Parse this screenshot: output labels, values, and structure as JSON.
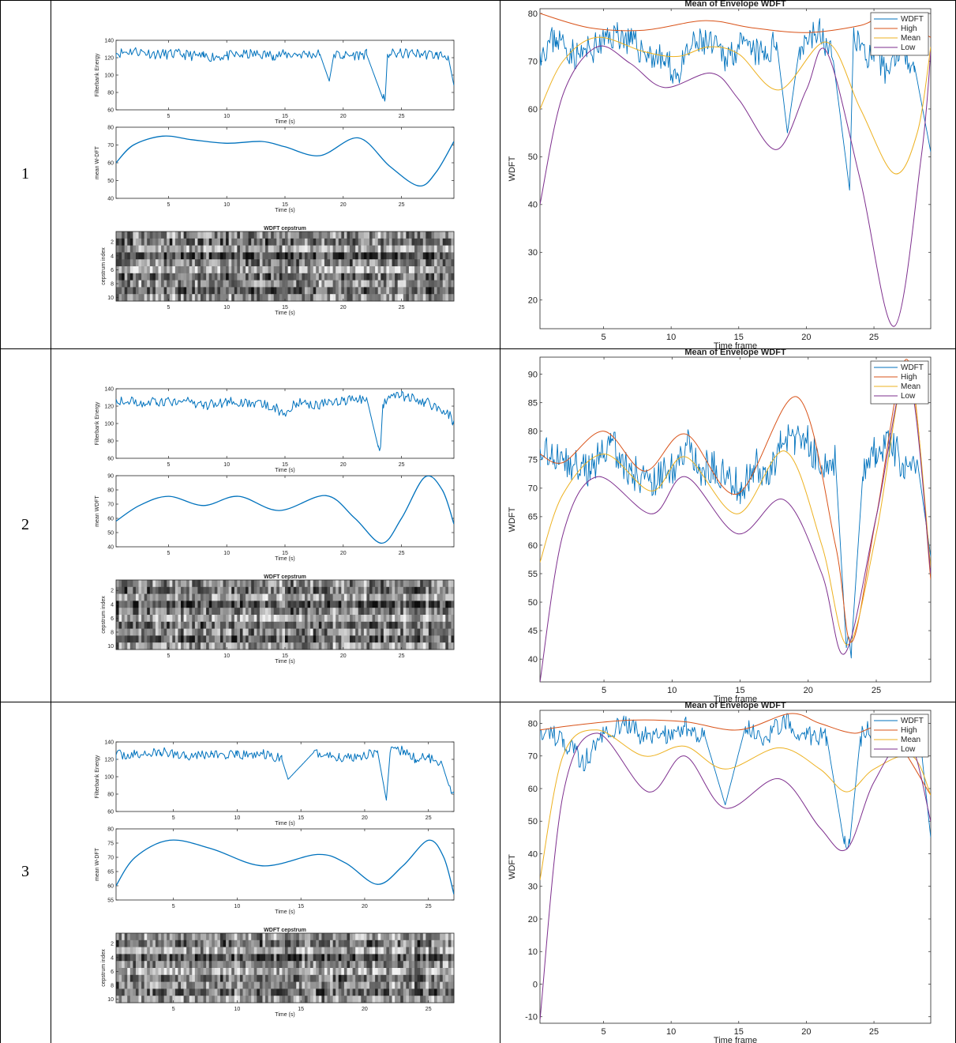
{
  "colors": {
    "wdft": "#0072BD",
    "high": "#D95319",
    "mean": "#EDB120",
    "low": "#7E2F8E",
    "axis": "#262626",
    "grid_line": "#000000"
  },
  "rows": [
    {
      "label": "1",
      "left": {
        "energy": {
          "ylabel": "Filterbank Energy",
          "xlabel": "Time (s)",
          "ylim": [
            60,
            140
          ],
          "yticks": [
            60,
            80,
            100,
            120,
            140
          ],
          "xticks": [
            5,
            10,
            15,
            20,
            25
          ],
          "xlim": [
            0.5,
            29.5
          ]
        },
        "mean": {
          "ylabel": "mean W-DFT",
          "xlabel": "Time (s)",
          "ylim": [
            40,
            80
          ],
          "yticks": [
            40,
            50,
            60,
            70,
            80
          ],
          "xticks": [
            5,
            10,
            15,
            20,
            25
          ],
          "xlim": [
            0.5,
            29.5
          ]
        },
        "cep": {
          "title": "WDFT cepstrum",
          "ylabel": "cepstrum index",
          "xlabel": "Time (s)",
          "yticks": [
            2,
            4,
            6,
            8,
            10
          ],
          "xticks": [
            5,
            10,
            15,
            20,
            25
          ],
          "xlim": [
            0.5,
            29.5
          ]
        }
      },
      "right": {
        "title": "Mean of Envelope WDFT",
        "ylabel": "WDFT",
        "xlabel": "Time frame",
        "ylim": [
          14,
          81
        ],
        "yticks": [
          20,
          30,
          40,
          50,
          60,
          70,
          80
        ],
        "xticks": [
          5,
          10,
          15,
          20,
          25
        ],
        "xlim": [
          0.3,
          29.2
        ],
        "legend": [
          "WDFT",
          "High",
          "Mean",
          "Low"
        ]
      }
    },
    {
      "label": "2",
      "left": {
        "energy": {
          "ylabel": "Filterbank Energy",
          "xlabel": "Time (s)",
          "ylim": [
            60,
            140
          ],
          "yticks": [
            60,
            80,
            100,
            120,
            140
          ],
          "xticks": [
            5,
            10,
            15,
            20,
            25
          ],
          "xlim": [
            0.5,
            29.5
          ]
        },
        "mean": {
          "ylabel": "mean WDFT",
          "xlabel": "Time (s)",
          "ylim": [
            40,
            90
          ],
          "yticks": [
            40,
            50,
            60,
            70,
            80,
            90
          ],
          "xticks": [
            5,
            10,
            15,
            20,
            25
          ],
          "xlim": [
            0.5,
            29.5
          ]
        },
        "cep": {
          "title": "WDFT cepstrum",
          "ylabel": "cepstrum index",
          "xlabel": "Time (s)",
          "yticks": [
            2,
            4,
            6,
            8,
            10
          ],
          "xticks": [
            5,
            10,
            15,
            20,
            25
          ],
          "xlim": [
            0.5,
            29.5
          ]
        }
      },
      "right": {
        "title": "Mean of Envelope WDFT",
        "ylabel": "WDFT",
        "xlabel": "Time frame",
        "ylim": [
          36,
          93
        ],
        "yticks": [
          40,
          45,
          50,
          55,
          60,
          65,
          70,
          75,
          80,
          85,
          90
        ],
        "xticks": [
          5,
          10,
          15,
          20,
          25
        ],
        "xlim": [
          0.3,
          29.0
        ],
        "legend": [
          "WDFT",
          "High",
          "Mean",
          "Low"
        ]
      }
    },
    {
      "label": "3",
      "left": {
        "energy": {
          "ylabel": "Filterbank Energy",
          "xlabel": "Time (s)",
          "ylim": [
            60,
            140
          ],
          "yticks": [
            60,
            80,
            100,
            120,
            140
          ],
          "xticks": [
            5,
            10,
            15,
            20,
            25
          ],
          "xlim": [
            0.5,
            27
          ]
        },
        "mean": {
          "ylabel": "mean W-DFT",
          "xlabel": "Time (s)",
          "ylim": [
            55,
            80
          ],
          "yticks": [
            55,
            60,
            65,
            70,
            75,
            80
          ],
          "xticks": [
            5,
            10,
            15,
            20,
            25
          ],
          "xlim": [
            0.5,
            27
          ]
        },
        "cep": {
          "title": "WDFT cepstrum",
          "ylabel": "cepstrum index",
          "xlabel": "Time (s)",
          "yticks": [
            2,
            4,
            6,
            8,
            10
          ],
          "xticks": [
            5,
            10,
            15,
            20,
            25
          ],
          "xlim": [
            0.5,
            27
          ]
        }
      },
      "right": {
        "title": "Mean of Envelope WDFT",
        "ylabel": "WDFT",
        "xlabel": "Time frame",
        "ylim": [
          -12,
          84
        ],
        "yticks": [
          -10,
          0,
          10,
          20,
          30,
          40,
          50,
          60,
          70,
          80
        ],
        "xticks": [
          5,
          10,
          15,
          20,
          25
        ],
        "xlim": [
          0.3,
          29.2
        ],
        "legend": [
          "WDFT",
          "High",
          "Mean",
          "Low"
        ]
      }
    }
  ],
  "chart_data": [
    {
      "type": "line",
      "title": "",
      "xlabel": "Time (s)",
      "ylabel": "Filterbank Energy",
      "ylim": [
        60,
        140
      ],
      "series": [
        {
          "x": [
            0.5,
            2,
            4,
            6,
            8,
            10,
            12,
            14,
            16,
            18,
            18.8,
            19.2,
            20,
            22,
            23.4,
            23.6,
            23.8,
            24,
            26,
            28,
            29,
            29.5
          ],
          "values": [
            125,
            128,
            124,
            124,
            121,
            122,
            124,
            123,
            124,
            124,
            93,
            124,
            122,
            124,
            73,
            73,
            124,
            124,
            125,
            123,
            122,
            88
          ]
        }
      ]
    },
    {
      "type": "line",
      "title": "",
      "xlabel": "Time (s)",
      "ylabel": "mean W-DFT",
      "ylim": [
        40,
        80
      ],
      "series": [
        {
          "x": [
            0.5,
            2,
            4.5,
            7,
            10,
            13,
            15,
            18,
            21.3,
            24,
            26.5,
            28,
            29.5
          ],
          "values": [
            60,
            70,
            75,
            73,
            71,
            72,
            69,
            64,
            74,
            58,
            47,
            55,
            72
          ]
        }
      ]
    },
    {
      "type": "heatmap",
      "title": "WDFT cepstrum",
      "xlabel": "Time (s)",
      "ylabel": "cepstrum index"
    },
    {
      "type": "line",
      "title": "Mean of Envelope WDFT",
      "xlabel": "Time frame",
      "ylabel": "WDFT",
      "ylim": [
        14,
        81
      ],
      "series": [
        {
          "name": "WDFT",
          "x": [
            0.3,
            1.5,
            3,
            4.5,
            6,
            7,
            8,
            9.5,
            10.5,
            11.5,
            12.5,
            14,
            15,
            16,
            17,
            17.8,
            18.6,
            19.5,
            20,
            21,
            22,
            23.2,
            23.5,
            24,
            25,
            26,
            27,
            28,
            29.2
          ],
          "values": [
            72,
            75,
            71,
            73,
            76,
            74,
            72,
            70,
            67,
            73,
            74,
            71,
            73,
            72,
            71,
            74,
            55,
            73,
            75,
            76,
            70,
            43,
            77,
            73,
            70,
            68,
            74,
            69,
            51
          ]
        },
        {
          "name": "High",
          "x": [
            0.3,
            4,
            8,
            12.5,
            16,
            20,
            24,
            26,
            29.2
          ],
          "values": [
            80,
            77,
            76.5,
            78.5,
            77,
            76,
            77.5,
            79.5,
            75
          ]
        },
        {
          "name": "Mean",
          "x": [
            0.3,
            2,
            4.5,
            8,
            10.5,
            12.8,
            15,
            18,
            21.5,
            24,
            26.5,
            28.2,
            29.2
          ],
          "values": [
            60,
            70,
            75,
            72,
            71,
            73,
            71.5,
            64,
            74,
            60,
            46.5,
            55,
            73
          ]
        },
        {
          "name": "Low",
          "x": [
            0.3,
            2,
            4.5,
            7,
            9.5,
            13,
            15,
            17.8,
            20,
            21.5,
            24,
            26.5,
            28.5,
            29.2
          ],
          "values": [
            40,
            63,
            73,
            69.5,
            64.5,
            67.5,
            62,
            51.5,
            64,
            72,
            45,
            14.5,
            50,
            72
          ]
        }
      ]
    },
    {
      "type": "line",
      "title": "",
      "xlabel": "Time (s)",
      "ylabel": "Filterbank Energy",
      "ylim": [
        60,
        140
      ],
      "series": [
        {
          "x": [
            0.5,
            2,
            4,
            6,
            8,
            10,
            12,
            14,
            15,
            16,
            18,
            20,
            22,
            23,
            23.2,
            23.4,
            23.8,
            25,
            27,
            29,
            29.5
          ],
          "values": [
            128,
            125,
            124,
            126,
            121,
            125,
            122,
            120,
            110,
            124,
            122,
            126,
            130,
            73,
            73,
            122,
            128,
            132,
            125,
            112,
            100
          ]
        }
      ]
    },
    {
      "type": "line",
      "title": "",
      "xlabel": "Time (s)",
      "ylabel": "mean WDFT",
      "ylim": [
        40,
        90
      ],
      "series": [
        {
          "x": [
            0.5,
            2.5,
            5,
            8,
            11,
            14.5,
            18.5,
            21,
            23.3,
            25,
            27,
            28.5,
            29.5
          ],
          "values": [
            58,
            69,
            75.5,
            69,
            75.5,
            65.5,
            76,
            60,
            42.5,
            60,
            89,
            80,
            56
          ]
        }
      ]
    },
    {
      "type": "heatmap",
      "title": "WDFT cepstrum",
      "xlabel": "Time (s)",
      "ylabel": "cepstrum index"
    },
    {
      "type": "line",
      "title": "Mean of Envelope WDFT",
      "xlabel": "Time frame",
      "ylabel": "WDFT",
      "ylim": [
        36,
        93
      ],
      "series": [
        {
          "name": "WDFT",
          "x": [
            0.3,
            2,
            4,
            5.5,
            7,
            8.5,
            10,
            11,
            12,
            13,
            14,
            15,
            16,
            17,
            18,
            19,
            20,
            21,
            22,
            22.8,
            23.2,
            24,
            25,
            26,
            27,
            28,
            29
          ],
          "values": [
            77,
            75,
            73,
            78,
            73,
            71,
            73,
            78,
            73,
            74,
            72,
            70,
            74,
            73,
            77,
            79,
            78,
            74,
            75,
            42,
            43,
            72,
            77,
            78,
            74,
            75,
            58
          ]
        },
        {
          "name": "High",
          "x": [
            0.3,
            2,
            5,
            8,
            11,
            14.8,
            19.2,
            22,
            23.2,
            25,
            27.3,
            29
          ],
          "values": [
            76,
            74.5,
            80,
            73,
            79.5,
            69,
            86,
            60,
            43,
            65,
            92.5,
            54
          ]
        },
        {
          "name": "Mean",
          "x": [
            0.3,
            2,
            5,
            8.5,
            11,
            14.8,
            18.3,
            21,
            22.9,
            25,
            27.3,
            29
          ],
          "values": [
            57,
            69,
            76,
            69.5,
            75.5,
            65.5,
            76.5,
            60,
            42.5,
            62,
            91,
            56
          ]
        },
        {
          "name": "Low",
          "x": [
            0.3,
            2,
            4.5,
            8.5,
            11,
            14.8,
            18.2,
            21,
            22.7,
            25,
            27.3,
            29
          ],
          "values": [
            36,
            62,
            72,
            65.5,
            72,
            62,
            68,
            55,
            41,
            65,
            90,
            55
          ]
        }
      ]
    },
    {
      "type": "line",
      "title": "",
      "xlabel": "Time (s)",
      "ylabel": "Filterbank Energy",
      "ylim": [
        60,
        140
      ],
      "series": [
        {
          "x": [
            0.5,
            2,
            4,
            6,
            8,
            10,
            12,
            13.5,
            14,
            16,
            18,
            20,
            21,
            21.7,
            22,
            23,
            24,
            25,
            26,
            26.6,
            27
          ],
          "values": [
            125,
            125,
            128,
            125,
            126,
            124,
            126,
            120,
            97,
            128,
            122,
            125,
            130,
            73,
            128,
            130,
            120,
            122,
            118,
            90,
            80
          ]
        }
      ]
    },
    {
      "type": "line",
      "title": "",
      "xlabel": "Time (s)",
      "ylabel": "mean W-DFT",
      "ylim": [
        55,
        80
      ],
      "series": [
        {
          "x": [
            0.5,
            2,
            4.7,
            8,
            12,
            16.3,
            18.5,
            21,
            23,
            25,
            26.2,
            27
          ],
          "values": [
            60,
            70,
            76,
            73,
            67,
            71,
            68,
            60.5,
            67,
            76,
            70,
            57
          ]
        }
      ]
    },
    {
      "type": "heatmap",
      "title": "WDFT cepstrum",
      "xlabel": "Time (s)",
      "ylabel": "cepstrum index"
    },
    {
      "type": "line",
      "title": "Mean of Envelope WDFT",
      "xlabel": "Time frame",
      "ylabel": "WDFT",
      "ylim": [
        -12,
        84
      ],
      "series": [
        {
          "name": "WDFT",
          "x": [
            0.3,
            2,
            3.5,
            5,
            6.5,
            8,
            9.5,
            11,
            12.5,
            14,
            15.5,
            17,
            18.5,
            20,
            21.5,
            22.8,
            23.2,
            24,
            25.5,
            27,
            28.5,
            29.2
          ],
          "values": [
            78,
            75,
            68,
            77,
            80,
            76,
            76,
            79,
            76,
            55,
            79,
            76,
            81,
            76,
            76,
            43,
            43,
            76,
            80,
            76,
            72,
            45
          ]
        },
        {
          "name": "High",
          "x": [
            0.3,
            3,
            7,
            11,
            15,
            18.8,
            21,
            23.5,
            26,
            29.2
          ],
          "values": [
            78,
            79.5,
            81,
            80.5,
            78,
            83,
            80,
            77,
            78,
            58
          ]
        },
        {
          "name": "Mean",
          "x": [
            0.3,
            2,
            4.5,
            8,
            11,
            14,
            18,
            21,
            23,
            25,
            27.8,
            29.2
          ],
          "values": [
            32,
            70,
            78,
            70,
            73,
            66,
            72.5,
            66,
            59,
            66,
            70,
            58
          ]
        },
        {
          "name": "Low",
          "x": [
            0.3,
            2,
            4.5,
            8.3,
            11,
            14,
            18,
            21,
            23,
            25,
            27.5,
            29.2
          ],
          "values": [
            -11,
            58,
            77,
            59,
            70,
            54,
            63,
            48,
            41.5,
            62,
            75,
            50
          ]
        }
      ]
    }
  ]
}
